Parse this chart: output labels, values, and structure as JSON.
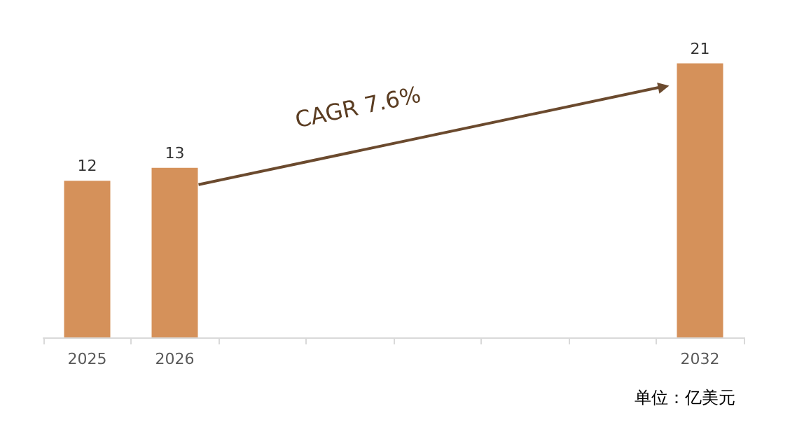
{
  "chart_data": {
    "type": "bar",
    "categories": [
      "2025",
      "2026",
      null,
      null,
      null,
      null,
      null,
      "2032"
    ],
    "values": [
      12,
      13,
      null,
      null,
      null,
      null,
      null,
      21
    ],
    "color": "#d5915a",
    "data_labels": true,
    "annotations": [
      "CAGR 7.6%",
      "单位：亿美元"
    ]
  }
}
